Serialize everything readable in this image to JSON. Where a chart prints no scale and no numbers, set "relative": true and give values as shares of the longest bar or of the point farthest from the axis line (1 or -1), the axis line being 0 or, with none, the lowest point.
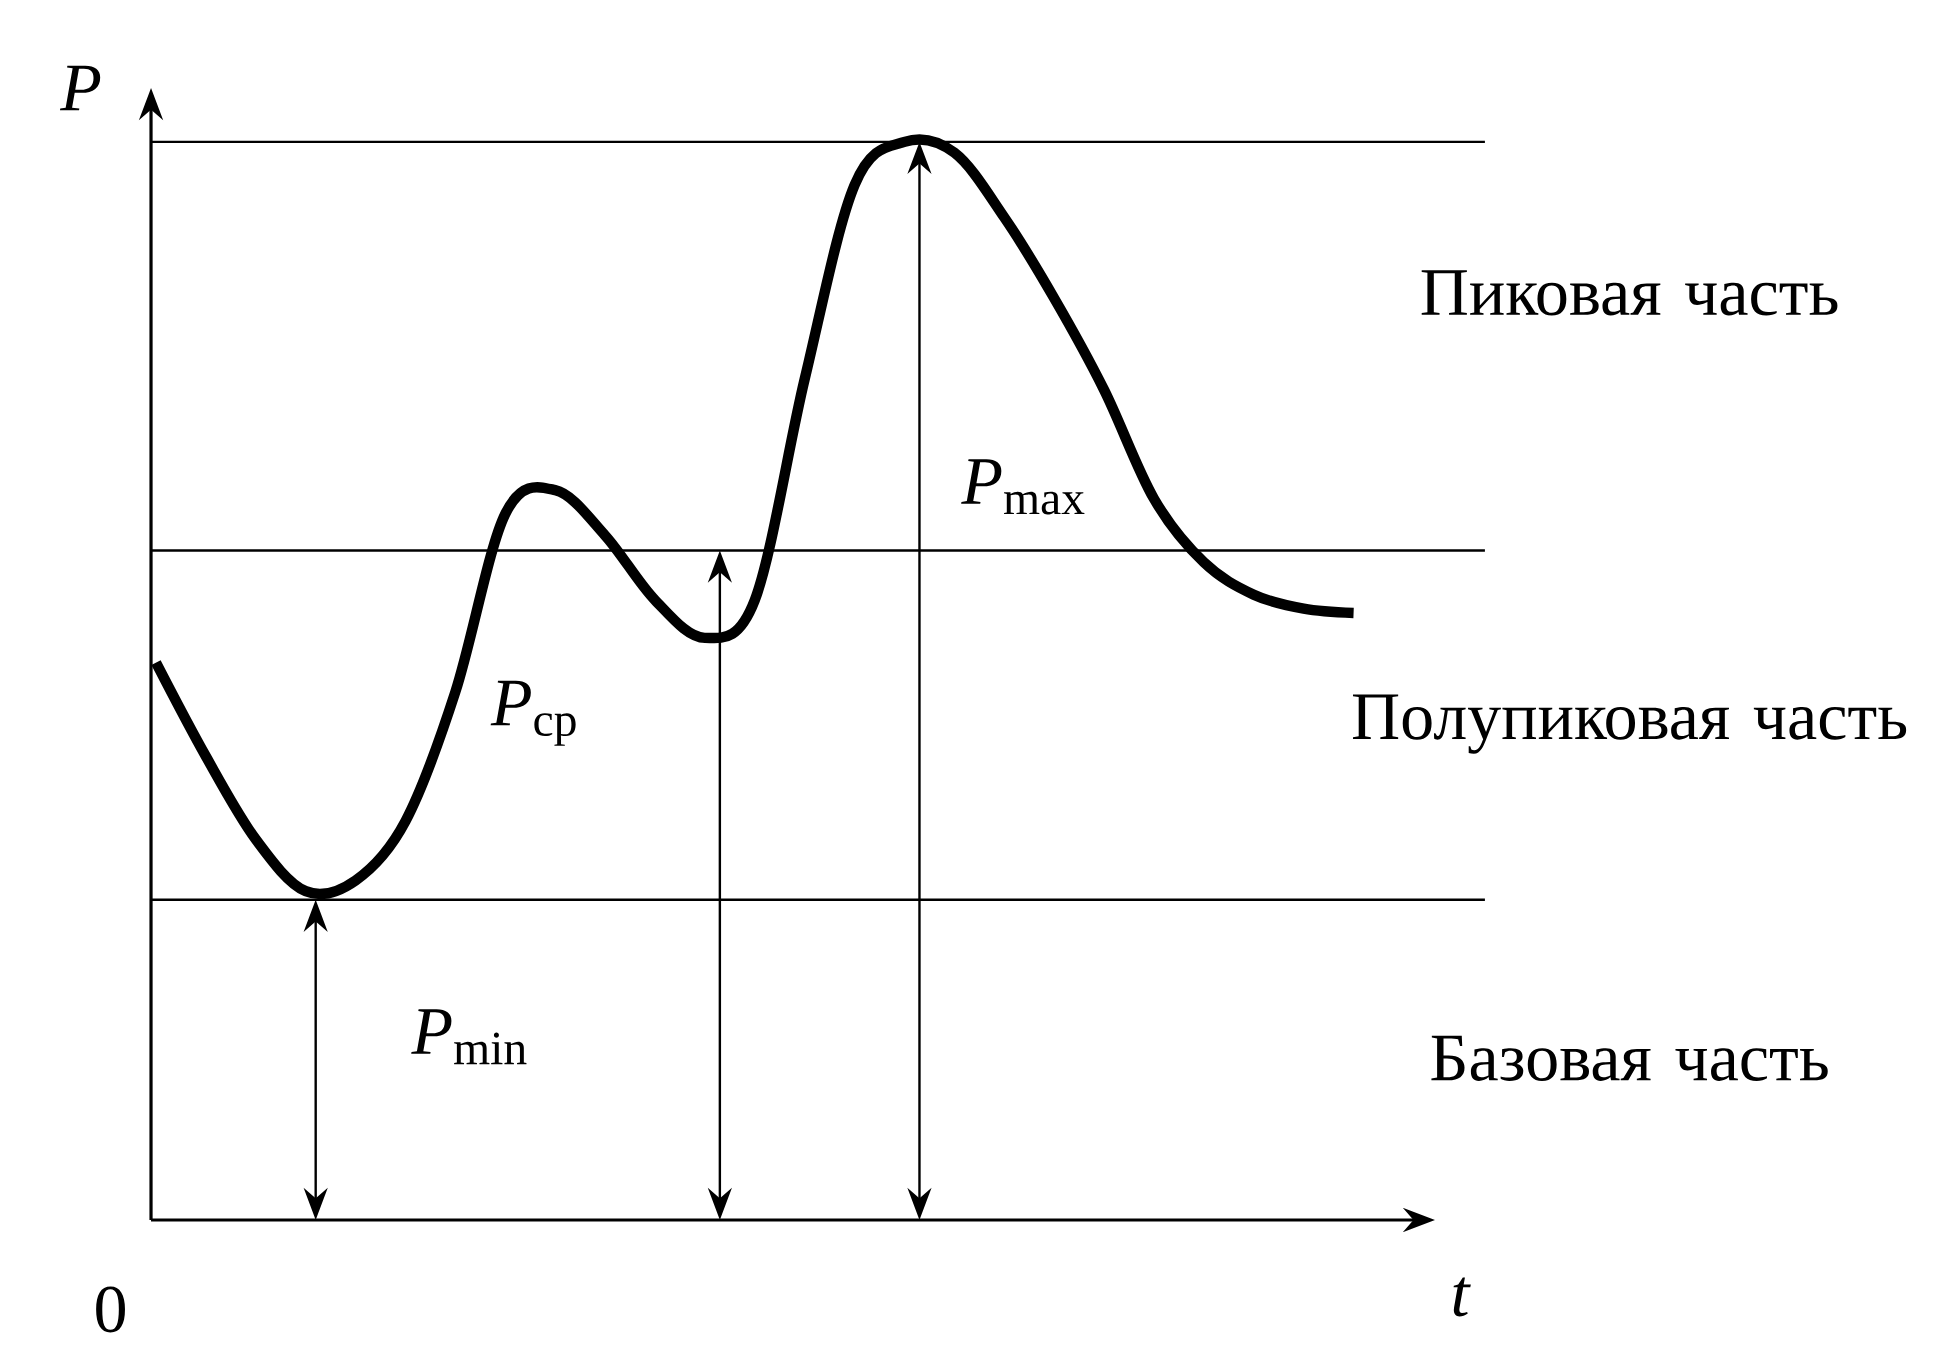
{
  "chart_data": {
    "type": "line",
    "relative": true,
    "xlabel": "*t*",
    "ylabel": "*P*",
    "categories": [
      null,
      null,
      null,
      null,
      null,
      null,
      null,
      null,
      null,
      null,
      null,
      null,
      null,
      null,
      null,
      null,
      null,
      null,
      null,
      null,
      null,
      null,
      null,
      null,
      null
    ],
    "series": [
      {
        "color": "#000000",
        "values": [
          0.517,
          0.43,
          0.353,
          0.305,
          0.315,
          0.37,
          0.49,
          0.655,
          0.677,
          0.635,
          0.575,
          0.54,
          0.575,
          0.78,
          0.96,
          1.0,
          0.99,
          0.93,
          0.855,
          0.77,
          0.669,
          0.61,
          0.58,
          0.567,
          0.563
        ]
      }
    ],
    "ref_lines": [
      {
        "axis": "y",
        "value": 0.297,
        "color": "#000000"
      },
      {
        "axis": "y",
        "value": 0.621,
        "color": "#000000"
      },
      {
        "axis": "y",
        "value": 1.0,
        "color": "#000000"
      }
    ],
    "annotations": [
      "*P*$_{min}$",
      "*P*$_{ср}$",
      "*P*$_{max}$",
      "Базовая часть",
      "Полупиковая часть",
      "Пиковая часть",
      "0"
    ],
    "marker": "none",
    "line_style": "solid"
  }
}
